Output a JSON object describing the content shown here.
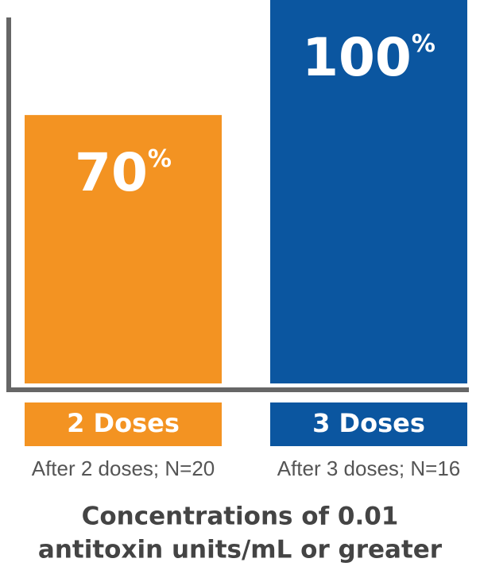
{
  "chart_data": {
    "type": "bar",
    "categories": [
      "2 Doses",
      "3 Doses"
    ],
    "category_notes": [
      "After 2 doses; N=20",
      "After 3 doses; N=16"
    ],
    "values": [
      70,
      100
    ],
    "value_labels": [
      "70%",
      "100%"
    ],
    "colors": [
      "#f39322",
      "#0b56a0"
    ],
    "ylim": [
      0,
      100
    ],
    "title_lines": [
      "Concentrations of 0.01",
      "antitoxin units/mL or greater"
    ]
  }
}
